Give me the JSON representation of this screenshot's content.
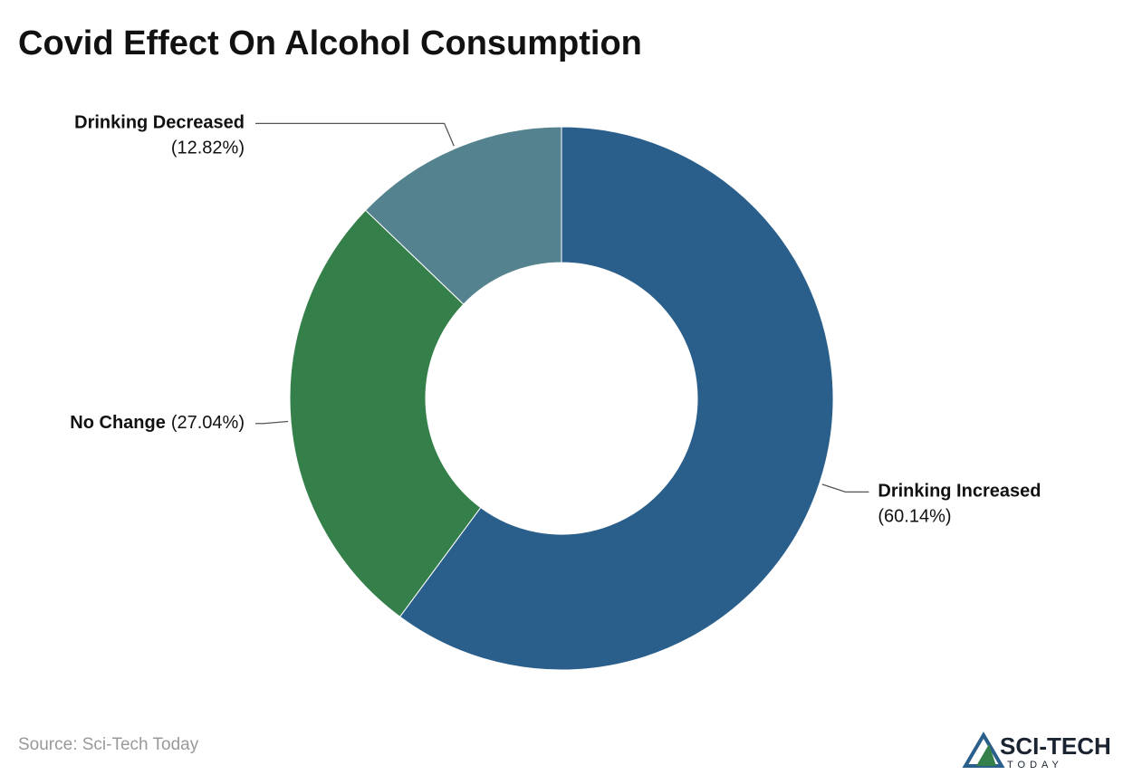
{
  "chart_data": {
    "type": "donut",
    "title": "Covid Effect On Alcohol Consumption",
    "categories": [
      "Drinking Increased",
      "No Change",
      "Drinking Decreased"
    ],
    "values": [
      60.14,
      27.04,
      12.82
    ],
    "value_labels": [
      "(60.14%)",
      "(27.04%)",
      "(12.82%)"
    ],
    "colors": [
      "#2a5f8c",
      "#35804a",
      "#54838f"
    ],
    "source": "Source: Sci-Tech Today"
  },
  "logo": {
    "name": "SCI-TECH",
    "tagline": "TODAY"
  }
}
